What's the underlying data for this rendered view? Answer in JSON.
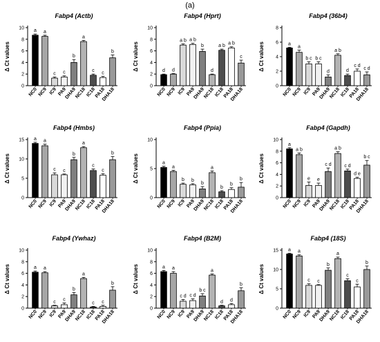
{
  "figure_label": "(a)",
  "categories": [
    "NC0",
    "NC9",
    "IC9",
    "PA9",
    "DHA9",
    "NC18",
    "IC18",
    "PA18",
    "DHA18"
  ],
  "bar_colors": [
    "#000000",
    "#a6a6a6",
    "#d9d9d9",
    "#f2f2f2",
    "#808080",
    "#b3b3b3",
    "#4d4d4d",
    "#ffffff",
    "#999999"
  ],
  "chart_data": [
    {
      "type": "bar",
      "title": "Fabp4 (Actb)",
      "ylabel": "Δ Ct values",
      "ylim": [
        0,
        10
      ],
      "yticks": [
        "0",
        "2",
        "4",
        "6",
        "8",
        "10"
      ],
      "categories": [
        "NC0",
        "NC9",
        "IC9",
        "PA9",
        "DHA9",
        "NC18",
        "IC18",
        "PA18",
        "DHA18"
      ],
      "values": [
        8.7,
        8.5,
        1.3,
        1.5,
        4.0,
        7.6,
        1.8,
        1.4,
        4.8
      ],
      "errors": [
        0.2,
        0.2,
        0.2,
        0.2,
        0.5,
        0.2,
        0.2,
        0.2,
        0.5
      ],
      "letters": [
        "a",
        "a",
        "c",
        "c",
        "b",
        "a",
        "c",
        "c",
        "b"
      ]
    },
    {
      "type": "bar",
      "title": "Fabp4 (Hprt)",
      "ylabel": "Δ Ct values",
      "ylim": [
        0,
        10
      ],
      "yticks": [
        "0",
        "2",
        "4",
        "6",
        "8",
        "10"
      ],
      "categories": [
        "NC0",
        "NC9",
        "IC9",
        "PA9",
        "DHA9",
        "NC18",
        "IC18",
        "PA18",
        "DHA18"
      ],
      "values": [
        1.9,
        2.0,
        7.0,
        7.1,
        5.9,
        1.9,
        6.1,
        6.5,
        3.9
      ],
      "errors": [
        0.1,
        0.1,
        0.2,
        0.2,
        0.4,
        0.1,
        0.2,
        0.2,
        0.5
      ],
      "letters": [
        "d",
        "d",
        "a b",
        "a b",
        "b",
        "d",
        "a b",
        "a b",
        "c"
      ]
    },
    {
      "type": "bar",
      "title": "Fabp4 (36b4)",
      "ylabel": "Δ Ct values",
      "ylim": [
        0,
        8
      ],
      "yticks": [
        "0",
        "2",
        "4",
        "6",
        "8"
      ],
      "categories": [
        "NC0",
        "NC9",
        "IC9",
        "PA9",
        "DHA9",
        "NC18",
        "IC18",
        "PA18",
        "DHA18"
      ],
      "values": [
        5.2,
        4.6,
        3.0,
        3.0,
        1.2,
        4.2,
        1.4,
        2.0,
        1.5
      ],
      "errors": [
        0.1,
        0.3,
        0.3,
        0.3,
        0.3,
        0.2,
        0.2,
        0.3,
        0.4
      ],
      "letters": [
        "a",
        "a",
        "b c",
        "b c",
        "d",
        "a b",
        "d",
        "c d",
        "c d"
      ]
    },
    {
      "type": "bar",
      "title": "Fabp4 (Hmbs)",
      "ylabel": "Δ Ct values",
      "ylim": [
        0,
        15
      ],
      "yticks": [
        "0",
        "5",
        "10",
        "15"
      ],
      "categories": [
        "NC0",
        "NC9",
        "IC9",
        "PA9",
        "DHA9",
        "NC18",
        "IC18",
        "PA18",
        "DHA18"
      ],
      "values": [
        14.0,
        13.4,
        5.9,
        5.9,
        9.8,
        12.9,
        7.0,
        5.8,
        9.8
      ],
      "errors": [
        0.3,
        0.4,
        0.5,
        0.2,
        0.6,
        0.3,
        0.4,
        0.4,
        0.8
      ],
      "letters": [
        "a",
        "a",
        "c",
        "c",
        "b",
        "a",
        "c",
        "c",
        "b"
      ]
    },
    {
      "type": "bar",
      "title": "Fabp4 (Ppia)",
      "ylabel": "Δ Ct values",
      "ylim": [
        0,
        10
      ],
      "yticks": [
        "0",
        "5",
        "10"
      ],
      "categories": [
        "NC0",
        "NC9",
        "IC9",
        "PA9",
        "DHA9",
        "NC18",
        "IC18",
        "PA18",
        "DHA18"
      ],
      "values": [
        5.2,
        4.5,
        2.3,
        2.2,
        1.5,
        4.3,
        1.0,
        1.4,
        1.8
      ],
      "errors": [
        0.2,
        0.2,
        0.2,
        0.2,
        0.4,
        0.3,
        0.2,
        0.3,
        0.8
      ],
      "letters": [
        "a",
        "a",
        "b",
        "b",
        "b",
        "a",
        "b",
        "b",
        "b"
      ]
    },
    {
      "type": "bar",
      "title": "Fabp4 (Gapdh)",
      "ylabel": "Δ Ct values",
      "ylim": [
        0,
        10
      ],
      "yticks": [
        "0",
        "2",
        "4",
        "6",
        "8",
        "10"
      ],
      "categories": [
        "NC0",
        "NC9",
        "IC9",
        "PA9",
        "DHA9",
        "NC18",
        "IC18",
        "PA18",
        "DHA18"
      ],
      "values": [
        8.4,
        7.4,
        2.1,
        2.1,
        4.5,
        7.6,
        4.6,
        3.3,
        5.6
      ],
      "errors": [
        0.2,
        0.3,
        0.6,
        0.4,
        0.6,
        0.3,
        0.3,
        0.2,
        0.8
      ],
      "letters": [
        "a",
        "a b",
        "e",
        "e",
        "c d",
        "a b",
        "c d",
        "d e",
        "b c"
      ]
    },
    {
      "type": "bar",
      "title": "Fabp4 (Ywhaz)",
      "ylabel": "Δ Ct values",
      "ylim": [
        0,
        10
      ],
      "yticks": [
        "0",
        "2",
        "4",
        "6",
        "8",
        "10"
      ],
      "categories": [
        "NC0",
        "NC9",
        "IC9",
        "PA9",
        "DHA9",
        "NC18",
        "IC18",
        "PA18",
        "DHA18"
      ],
      "values": [
        6.2,
        6.1,
        0.4,
        0.6,
        2.3,
        5.1,
        0.2,
        0.3,
        3.1
      ],
      "errors": [
        0.2,
        0.2,
        0.1,
        0.3,
        0.4,
        0.2,
        0.1,
        0.2,
        0.6
      ],
      "letters": [
        "a",
        "a",
        "c",
        "c",
        "b",
        "a",
        "c",
        "c",
        "b"
      ]
    },
    {
      "type": "bar",
      "title": "Fabp4 (B2M)",
      "ylabel": "Δ Ct values",
      "ylim": [
        0,
        10
      ],
      "yticks": [
        "0",
        "2",
        "4",
        "6",
        "8",
        "10"
      ],
      "categories": [
        "NC0",
        "NC9",
        "IC9",
        "PA9",
        "DHA9",
        "NC18",
        "IC18",
        "PA18",
        "DHA18"
      ],
      "values": [
        6.3,
        6.0,
        1.2,
        1.3,
        2.1,
        5.7,
        0.4,
        0.6,
        3.0
      ],
      "errors": [
        0.2,
        0.3,
        0.3,
        0.3,
        0.4,
        0.2,
        0.1,
        0.2,
        0.5
      ],
      "letters": [
        "a",
        "a",
        "c d",
        "c d",
        "b c",
        "a",
        "d",
        "d",
        "b"
      ]
    },
    {
      "type": "bar",
      "title": "Fabp4 (18S)",
      "ylabel": "Δ Ct values",
      "ylim": [
        0,
        15
      ],
      "yticks": [
        "0",
        "5",
        "10",
        "15"
      ],
      "categories": [
        "NC0",
        "NC9",
        "IC9",
        "PA9",
        "DHA9",
        "NC18",
        "IC18",
        "PA18",
        "DHA18"
      ],
      "values": [
        14.0,
        13.5,
        5.9,
        5.9,
        9.8,
        12.8,
        7.1,
        5.5,
        10.0
      ],
      "errors": [
        0.2,
        0.3,
        0.4,
        0.2,
        0.6,
        0.4,
        0.5,
        0.7,
        0.9
      ],
      "letters": [
        "a",
        "a",
        "c",
        "c",
        "b",
        "a",
        "c",
        "c",
        "b"
      ]
    }
  ]
}
